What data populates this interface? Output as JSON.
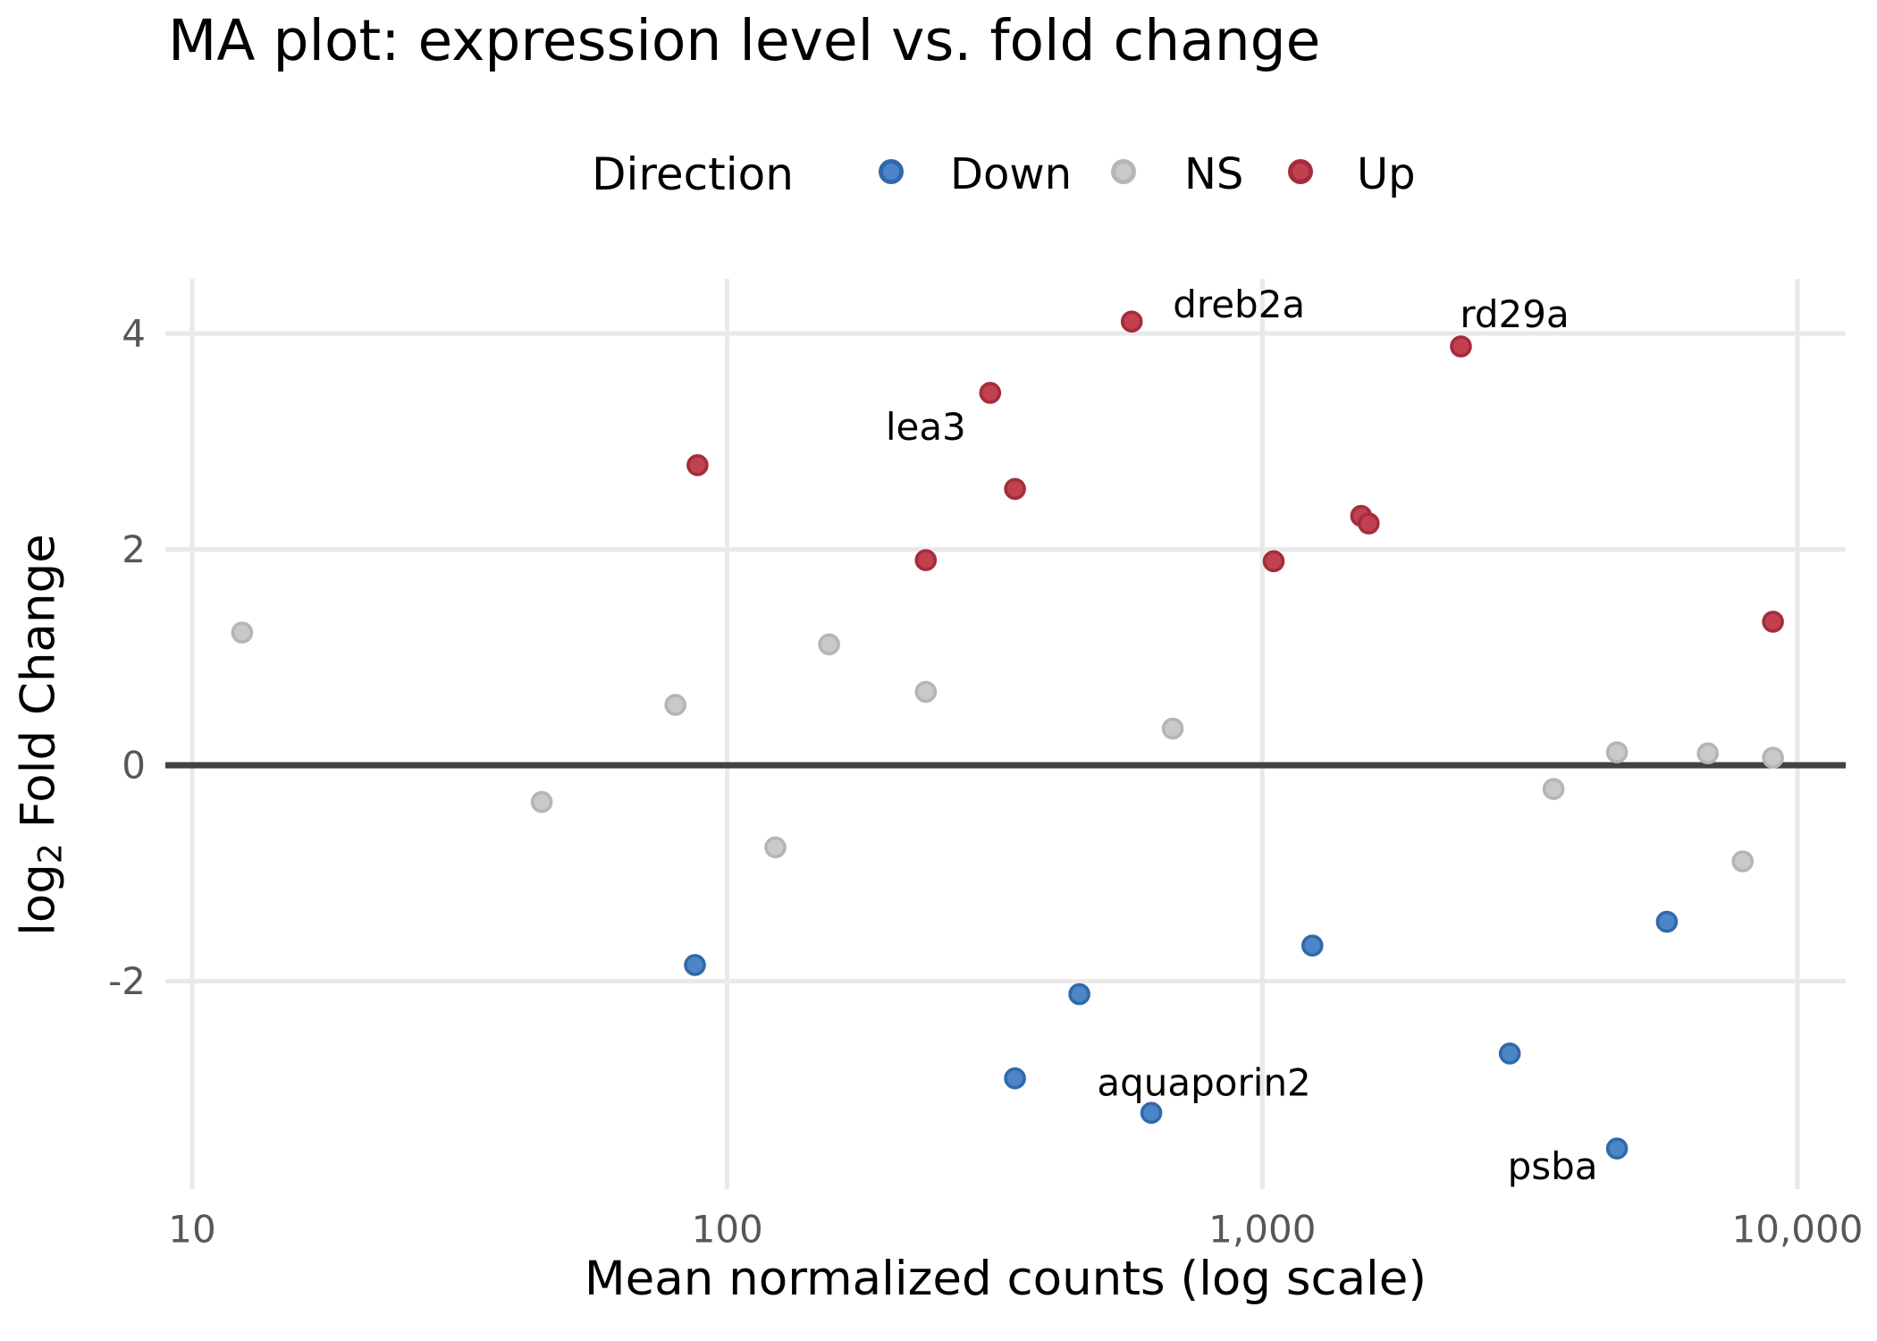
{
  "title": "MA plot: expression level vs. fold change",
  "legend": {
    "title": "Direction",
    "items": [
      {
        "label": "Down",
        "color": "#4d86c6",
        "edge": "#3069ab"
      },
      {
        "label": "NS",
        "color": "#c9c9c9",
        "edge": "#b5b5b5"
      },
      {
        "label": "Up",
        "color": "#c1414f",
        "edge": "#a52c3d"
      }
    ]
  },
  "axes": {
    "x": {
      "label": "Mean normalized counts (log scale)"
    },
    "y": {
      "label_prefix": "log",
      "label_sub": "2",
      "label_rest": " Fold Change"
    }
  },
  "chart_data": {
    "type": "scatter",
    "title": "MA plot: expression level vs. fold change",
    "xlabel": "Mean normalized counts (log scale)",
    "ylabel": "log2 Fold Change",
    "x_scale": "log",
    "xlim": [
      8.9,
      12300
    ],
    "ylim": [
      -3.93,
      4.51
    ],
    "x_ticks": [
      10,
      100,
      1000,
      10000
    ],
    "x_tick_labels": [
      "10",
      "100",
      "1,000",
      "10,000"
    ],
    "y_ticks": [
      -2,
      0,
      2,
      4
    ],
    "y_tick_labels": [
      "-2",
      "0",
      "2",
      "4"
    ],
    "grid": true,
    "zero_line_y": 0,
    "legend_position": "top-center",
    "colors": {
      "grid": "#e9e9e9",
      "zero_line": "#424242",
      "tick_text": "#575757",
      "annotation_text": "#000000"
    },
    "series": [
      {
        "name": "Down",
        "color": "#4d86c6",
        "edge": "#3069ab",
        "points": [
          {
            "x": 87,
            "y": -1.85
          },
          {
            "x": 345,
            "y": -2.9
          },
          {
            "x": 455,
            "y": -2.12
          },
          {
            "x": 620,
            "y": -3.22,
            "label": "aquaporin2",
            "label_dx": 59,
            "label_dy": -34
          },
          {
            "x": 1240,
            "y": -1.67
          },
          {
            "x": 2900,
            "y": -2.67
          },
          {
            "x": 4600,
            "y": -3.55,
            "label": "psba",
            "label_dx": -72,
            "label_dy": 20
          },
          {
            "x": 5700,
            "y": -1.45
          }
        ]
      },
      {
        "name": "NS",
        "color": "#c9c9c9",
        "edge": "#b5b5b5",
        "points": [
          {
            "x": 12.4,
            "y": 1.23
          },
          {
            "x": 45,
            "y": -0.34
          },
          {
            "x": 80,
            "y": 0.56
          },
          {
            "x": 123,
            "y": -0.76
          },
          {
            "x": 155,
            "y": 1.12
          },
          {
            "x": 235,
            "y": 0.68
          },
          {
            "x": 680,
            "y": 0.34
          },
          {
            "x": 3500,
            "y": -0.22
          },
          {
            "x": 4600,
            "y": 0.12
          },
          {
            "x": 6800,
            "y": 0.11
          },
          {
            "x": 7900,
            "y": -0.89
          },
          {
            "x": 9000,
            "y": 0.07
          }
        ]
      },
      {
        "name": "Up",
        "color": "#c1414f",
        "edge": "#a52c3d",
        "points": [
          {
            "x": 88,
            "y": 2.78
          },
          {
            "x": 235,
            "y": 1.9
          },
          {
            "x": 310,
            "y": 3.45,
            "label": "lea3",
            "label_dx": -72,
            "label_dy": 38
          },
          {
            "x": 345,
            "y": 2.56
          },
          {
            "x": 570,
            "y": 4.11,
            "label": "dreb2a",
            "label_dx": 120,
            "label_dy": -19
          },
          {
            "x": 1050,
            "y": 1.89
          },
          {
            "x": 1530,
            "y": 2.31
          },
          {
            "x": 1580,
            "y": 2.24
          },
          {
            "x": 2350,
            "y": 3.88,
            "label": "rd29a",
            "label_dx": 60,
            "label_dy": -36
          },
          {
            "x": 9000,
            "y": 1.33
          }
        ]
      }
    ]
  }
}
